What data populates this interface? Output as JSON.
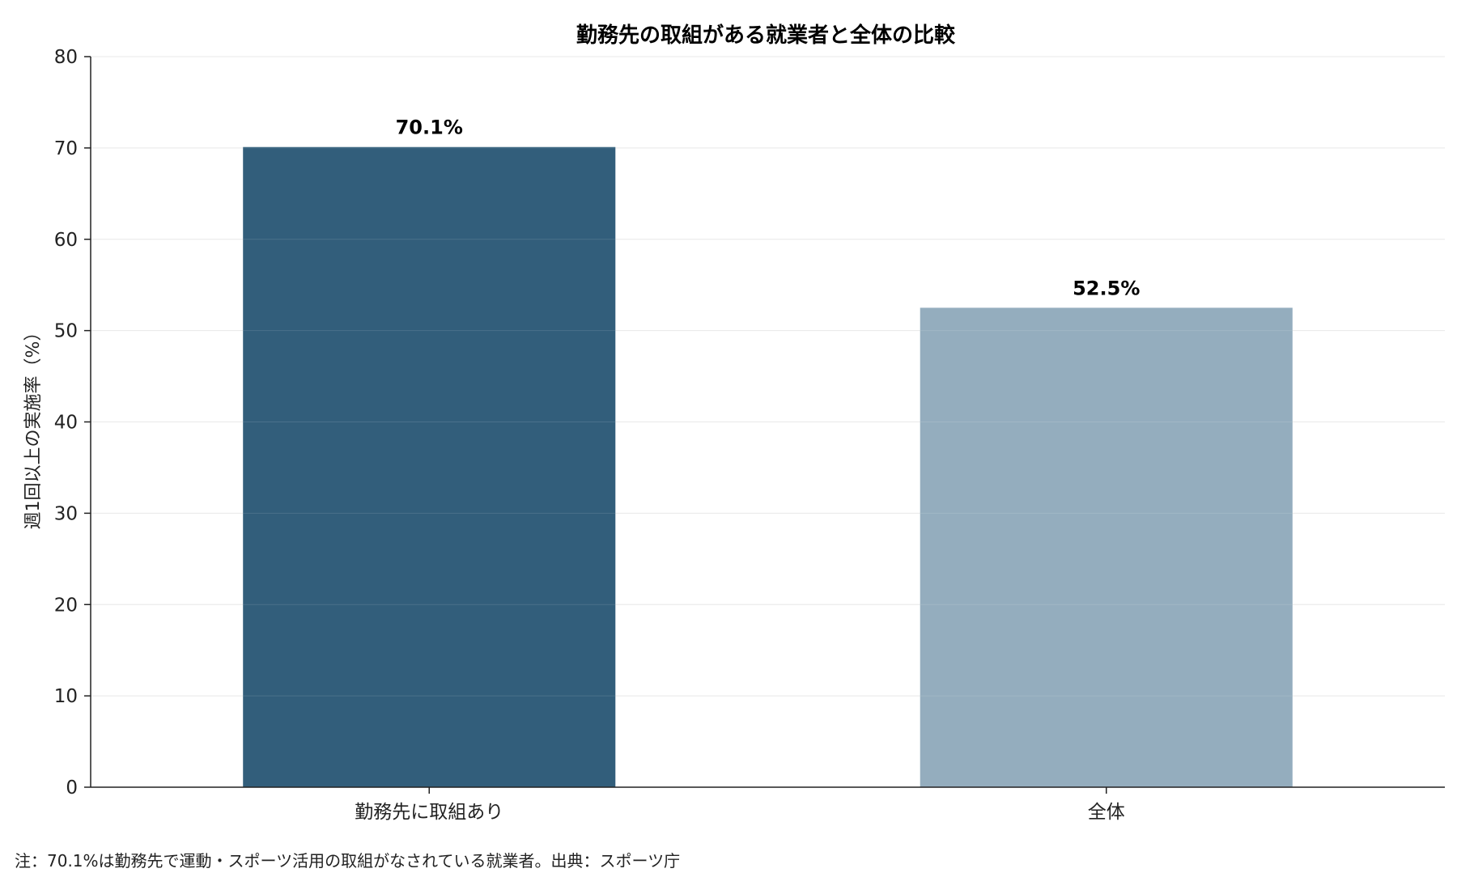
{
  "chart_data": {
    "type": "bar",
    "title": "勤務先の取組がある就業者と全体の比較",
    "ylabel": "週1回以上の実施率（%）",
    "xlabel": "",
    "categories": [
      "勤務先に取組あり",
      "全体"
    ],
    "values": [
      70.1,
      52.5
    ],
    "data_labels": [
      "70.1%",
      "52.5%"
    ],
    "colors": [
      "#325e7b",
      "#94adbe"
    ],
    "ylim": [
      0,
      80
    ],
    "yticks": [
      0,
      10,
      20,
      30,
      40,
      50,
      60,
      70,
      80
    ],
    "grid": true,
    "legend": "none",
    "note": "注：70.1%は勤務先で運動・スポーツ活用の取組がなされている就業者。出典：スポーツ庁"
  }
}
